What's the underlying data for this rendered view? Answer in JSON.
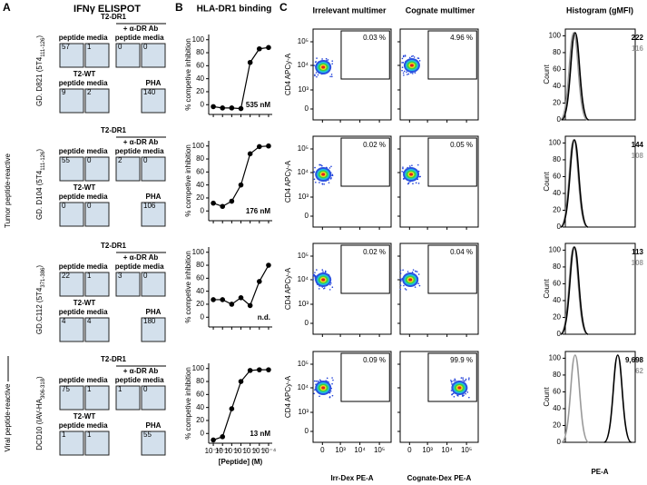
{
  "panel_labels": [
    "A",
    "B",
    "C"
  ],
  "elispot": {
    "title": "IFNγ ELISPOT",
    "group_labels": [
      "Tumor peptide-reactive",
      "Viral peptide-reactive"
    ],
    "blocks": [
      {
        "donor": {
          "text": "GD. D821 (5T4",
          "sub": "111-126",
          "end": ")"
        },
        "row1_header": "T2-DR1",
        "ab_header": "+ α-DR Ab",
        "row1_cols": [
          "peptide",
          "media",
          "peptide",
          "media"
        ],
        "row1_counts": [
          57,
          1,
          0,
          0
        ],
        "row2_header": "T2-WT",
        "row2_cols": [
          "peptide",
          "media",
          "PHA"
        ],
        "row2_counts": [
          9,
          2,
          140
        ]
      },
      {
        "donor": {
          "text": "GD. D104 (5T4",
          "sub": "111-126",
          "end": ")"
        },
        "row1_header": "T2-DR1",
        "ab_header": "+ α-DR Ab",
        "row1_cols": [
          "peptide",
          "media",
          "peptide",
          "media"
        ],
        "row1_counts": [
          55,
          0,
          2,
          0
        ],
        "row2_header": "T2-WT",
        "row2_cols": [
          "peptide",
          "media",
          "PHA"
        ],
        "row2_counts": [
          0,
          0,
          106
        ]
      },
      {
        "donor": {
          "text": "GD.C112 (5T4",
          "sub": "371-386",
          "end": ")"
        },
        "row1_header": "T2-DR1",
        "ab_header": "+ α-DR Ab",
        "row1_cols": [
          "peptide",
          "media",
          "peptide",
          "media"
        ],
        "row1_counts": [
          22,
          1,
          3,
          0
        ],
        "row2_header": "T2-WT",
        "row2_cols": [
          "peptide",
          "media",
          "PHA"
        ],
        "row2_counts": [
          4,
          4,
          180
        ]
      },
      {
        "donor": {
          "text": "DCD10 (IAV-HA",
          "sub": "306-318",
          "end": ")"
        },
        "row1_header": "T2-DR1",
        "ab_header": "+ α-DR Ab",
        "row1_cols": [
          "peptide",
          "media",
          "peptide",
          "media"
        ],
        "row1_counts": [
          75,
          1,
          1,
          0
        ],
        "row2_header": "T2-WT",
        "row2_cols": [
          "peptide",
          "media",
          "PHA"
        ],
        "row2_counts": [
          1,
          1,
          55
        ]
      }
    ]
  },
  "chart_data": [
    {
      "type": "line",
      "title": "HLA-DR1 binding",
      "ylabel": "% competive inhibition",
      "x": [
        -10,
        -9,
        -8,
        -7,
        -6,
        -5,
        -4
      ],
      "values": [
        -3,
        -5,
        -5,
        -6,
        65,
        86,
        88
      ],
      "color": "#000000",
      "xlim": [
        -10.5,
        -3.6
      ],
      "ylim": [
        -15,
        108
      ],
      "yticks": [
        0,
        20,
        40,
        60,
        80,
        100
      ],
      "xticks": [
        -10,
        -9,
        -8,
        -7,
        -6,
        -5,
        -4
      ],
      "annotation": "535 nM"
    },
    {
      "type": "line",
      "ylabel": "% competive inhibition",
      "x": [
        -10,
        -9,
        -8,
        -7,
        -6,
        -5,
        -4
      ],
      "values": [
        12,
        7,
        15,
        40,
        88,
        99,
        100
      ],
      "color": "#000000",
      "xlim": [
        -10.5,
        -3.6
      ],
      "ylim": [
        -15,
        108
      ],
      "yticks": [
        0,
        20,
        40,
        60,
        80,
        100
      ],
      "xticks": [
        -10,
        -9,
        -8,
        -7,
        -6,
        -5,
        -4
      ],
      "annotation": "176 nM"
    },
    {
      "type": "line",
      "ylabel": "% competive inhibition",
      "x": [
        -10,
        -9,
        -8,
        -7,
        -6,
        -5,
        -4
      ],
      "values": [
        27,
        27,
        20,
        30,
        18,
        55,
        80
      ],
      "color": "#000000",
      "xlim": [
        -10.5,
        -3.6
      ],
      "ylim": [
        -15,
        108
      ],
      "yticks": [
        0,
        20,
        40,
        60,
        80,
        100
      ],
      "xticks": [
        -10,
        -9,
        -8,
        -7,
        -6,
        -5,
        -4
      ],
      "annotation": "n.d."
    },
    {
      "type": "line",
      "ylabel": "% competive inhibition",
      "xlabel": "[Peptide] (M)",
      "x": [
        -10,
        -9,
        -8,
        -7,
        -6,
        -5,
        -4
      ],
      "values": [
        -10,
        -5,
        38,
        80,
        97,
        98,
        98
      ],
      "color": "#000000",
      "xlim": [
        -10.5,
        -3.6
      ],
      "ylim": [
        -15,
        108
      ],
      "yticks": [
        0,
        20,
        40,
        60,
        80,
        100
      ],
      "xticks": [
        {
          "value": -10,
          "label": "10⁻¹⁰"
        },
        {
          "value": -9,
          "label": "10⁻⁹"
        },
        {
          "value": -8,
          "label": "10⁻⁸"
        },
        {
          "value": -7,
          "label": "10⁻⁷"
        },
        {
          "value": -6,
          "label": "10⁻⁶"
        },
        {
          "value": -5,
          "label": "10⁻⁵"
        },
        {
          "value": -4,
          "label": "10⁻⁴"
        }
      ],
      "annotation": "13 nM"
    }
  ],
  "flow": {
    "column_titles": [
      "Irrelevant multimer",
      "Cognate multimer",
      "Histogram (gMFI)"
    ],
    "y_label": "CD4 APCy-A",
    "log_ticks": [
      "0",
      "10³",
      "10⁴",
      "10⁵"
    ],
    "x_labels": [
      "Irr-Dex PE-A",
      "Cognate-Dex PE-A"
    ],
    "rows": [
      {
        "irrelevant": "0.03 %",
        "cognate": "4.96 %",
        "gmfi_cognate": 222,
        "gmfi_irrelevant": 116
      },
      {
        "irrelevant": "0.02 %",
        "cognate": "0.05 %",
        "gmfi_cognate": 144,
        "gmfi_irrelevant": 108
      },
      {
        "irrelevant": "0.02 %",
        "cognate": "0.04 %",
        "gmfi_cognate": 113,
        "gmfi_irrelevant": 108
      },
      {
        "irrelevant": "0.09 %",
        "cognate": "99.9 %",
        "gmfi_cognate": {
          "value": 9698,
          "label": "9,698"
        },
        "gmfi_irrelevant": 62
      }
    ],
    "hist_ylabel": "Count",
    "hist_yticks": [
      0,
      20,
      40,
      60,
      80,
      100
    ],
    "hist_ylim": [
      0,
      108
    ],
    "hist_xlabel": "PE-A"
  }
}
